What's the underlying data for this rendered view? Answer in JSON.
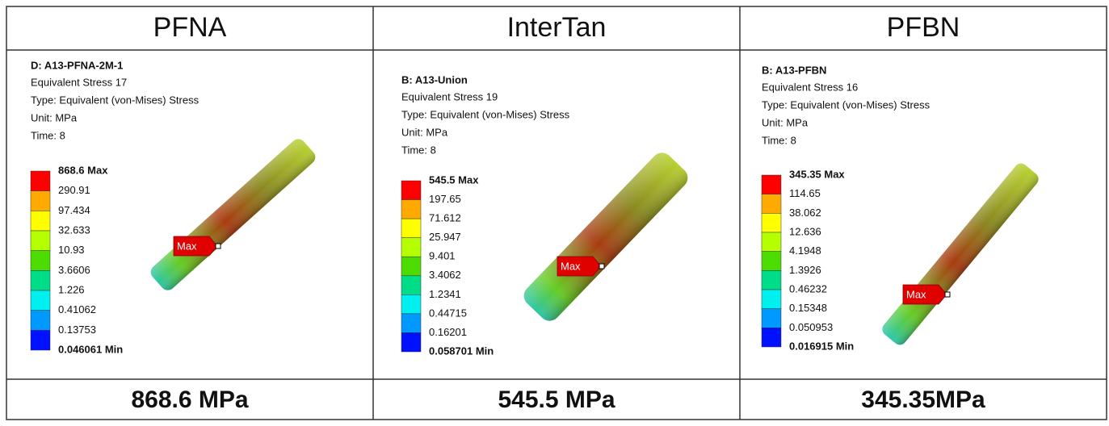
{
  "table": {
    "header": [
      "PFNA",
      "InterTan",
      "PFBN"
    ],
    "panels": [
      {
        "title": "D: A13-PFNA-2M-1",
        "lines": [
          "Equivalent Stress 17",
          "Type: Equivalent (von-Mises) Stress",
          "Unit: MPa",
          "Time: 8"
        ],
        "legend": [
          "868.6 Max",
          "290.91",
          "97.434",
          "32.633",
          "10.93",
          "3.6606",
          "1.226",
          "0.41062",
          "0.13753",
          "0.046061 Min"
        ],
        "marker": "Max"
      },
      {
        "title": "B: A13-Union",
        "lines": [
          "Equivalent Stress 19",
          "Type: Equivalent (von-Mises) Stress",
          "Unit: MPa",
          "Time: 8"
        ],
        "legend": [
          "545.5 Max",
          "197.65",
          "71.612",
          "25.947",
          "9.401",
          "3.4062",
          "1.2341",
          "0.44715",
          "0.16201",
          "0.058701 Min"
        ],
        "marker": "Max"
      },
      {
        "title": "B: A13-PFBN",
        "lines": [
          "Equivalent Stress 16",
          "Type: Equivalent (von-Mises) Stress",
          "Unit: MPa",
          "Time: 8"
        ],
        "legend": [
          "345.35 Max",
          "114.65",
          "38.062",
          "12.636",
          "4.1948",
          "1.3926",
          "0.46232",
          "0.15348",
          "0.050953",
          "0.016915 Min"
        ],
        "marker": "Max"
      }
    ],
    "footer": [
      "868.6 MPa",
      "545.5 MPa",
      "345.35MPa"
    ]
  }
}
